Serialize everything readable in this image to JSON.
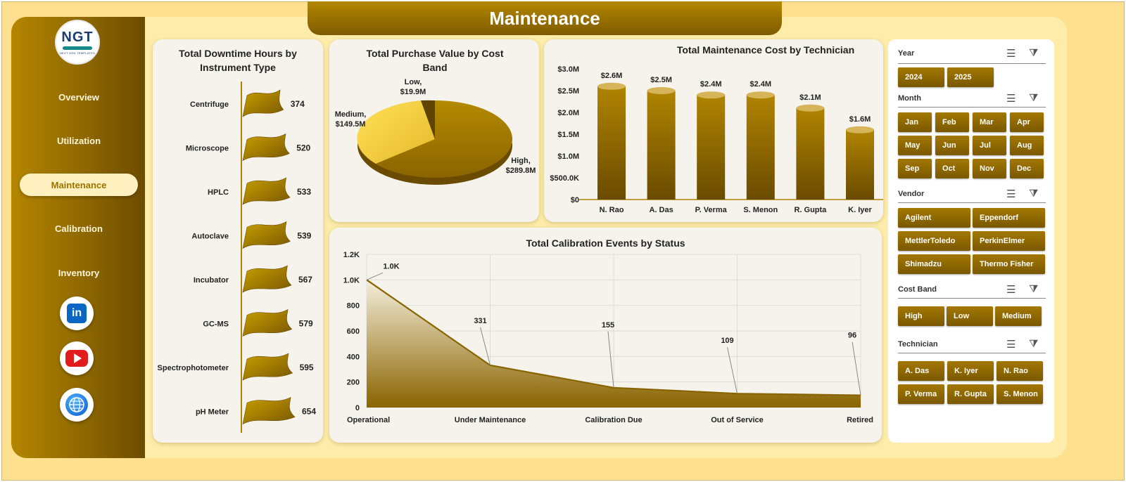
{
  "dashboard": {
    "title": "Maintenance"
  },
  "logo": {
    "mark": "NGT",
    "tagline": "NEXT GEN TEMPLATES"
  },
  "nav": {
    "items": [
      "Overview",
      "Utilization",
      "Maintenance",
      "Calibration",
      "Inventory"
    ],
    "active": "Maintenance"
  },
  "social": {
    "linkedin": "in"
  },
  "colors": {
    "accent": "#8a6400",
    "panel": "#fdecaa",
    "background": "#ffe08e",
    "active_nav": "#fff0c0"
  },
  "downtime": {
    "title_line1": "Total Downtime Hours by",
    "title_line2": "Instrument Type",
    "labels": [
      "Centrifuge",
      "Microscope",
      "HPLC",
      "Autoclave",
      "Incubator",
      "GC-MS",
      "Spectrophotometer",
      "pH Meter"
    ],
    "values": [
      "374",
      "520",
      "533",
      "539",
      "567",
      "579",
      "595",
      "654"
    ]
  },
  "purchase": {
    "title_line1": "Total Purchase Value by Cost",
    "title_line2": "Band",
    "low_name": "Low,",
    "low_value": "$19.9M",
    "medium_name": "Medium,",
    "medium_value": "$149.5M",
    "high_name": "High,",
    "high_value": "$289.8M"
  },
  "technician_cost": {
    "title": "Total Maintenance Cost by Technician",
    "y_ticks": [
      "$3.0M",
      "$2.5M",
      "$2.0M",
      "$1.5M",
      "$1.0M",
      "$500.0K",
      "$0"
    ],
    "names": [
      "N. Rao",
      "A. Das",
      "P. Verma",
      "S. Menon",
      "R. Gupta",
      "K. Iyer"
    ],
    "labels": [
      "$2.6M",
      "$2.5M",
      "$2.4M",
      "$2.4M",
      "$2.1M",
      "$1.6M"
    ]
  },
  "calibration": {
    "title": "Total Calibration Events by Status",
    "y_ticks": [
      "1.2K",
      "1.0K",
      "800",
      "600",
      "400",
      "200",
      "0"
    ],
    "categories": [
      "Operational",
      "Under Maintenance",
      "Calibration Due",
      "Out of Service",
      "Retired"
    ],
    "labels": [
      "1.0K",
      "331",
      "155",
      "109",
      "96"
    ]
  },
  "chart_data": [
    {
      "type": "bar",
      "title": "Total Downtime Hours by Instrument Type",
      "categories": [
        "Centrifuge",
        "Microscope",
        "HPLC",
        "Autoclave",
        "Incubator",
        "GC-MS",
        "Spectrophotometer",
        "pH Meter"
      ],
      "values": [
        374,
        520,
        533,
        539,
        567,
        579,
        595,
        654
      ]
    },
    {
      "type": "pie",
      "title": "Total Purchase Value by Cost Band",
      "categories": [
        "Low",
        "Medium",
        "High"
      ],
      "values": [
        19.9,
        149.5,
        289.8
      ],
      "unit": "$M"
    },
    {
      "type": "bar",
      "title": "Total Maintenance Cost by Technician",
      "categories": [
        "N. Rao",
        "A. Das",
        "P. Verma",
        "S. Menon",
        "R. Gupta",
        "K. Iyer"
      ],
      "values": [
        2.6,
        2.5,
        2.4,
        2.4,
        2.1,
        1.6
      ],
      "unit": "$M",
      "ylim": [
        0,
        3.0
      ]
    },
    {
      "type": "area",
      "title": "Total Calibration Events by Status",
      "categories": [
        "Operational",
        "Under Maintenance",
        "Calibration Due",
        "Out of Service",
        "Retired"
      ],
      "values": [
        1000,
        331,
        155,
        109,
        96
      ],
      "ylim": [
        0,
        1200
      ],
      "grid": true
    }
  ],
  "slicers": {
    "year": {
      "label": "Year",
      "options": [
        "2024",
        "2025"
      ]
    },
    "month": {
      "label": "Month",
      "options": [
        "Jan",
        "Feb",
        "Mar",
        "Apr",
        "May",
        "Jun",
        "Jul",
        "Aug",
        "Sep",
        "Oct",
        "Nov",
        "Dec"
      ]
    },
    "vendor": {
      "label": "Vendor",
      "options": [
        "Agilent",
        "Eppendorf",
        "MettlerToledo",
        "PerkinElmer",
        "Shimadzu",
        "Thermo Fisher"
      ]
    },
    "cost_band": {
      "label": "Cost Band",
      "options": [
        "High",
        "Low",
        "Medium"
      ]
    },
    "technician": {
      "label": "Technician",
      "options": [
        "A. Das",
        "K. Iyer",
        "N. Rao",
        "P. Verma",
        "R. Gupta",
        "S. Menon"
      ]
    }
  }
}
